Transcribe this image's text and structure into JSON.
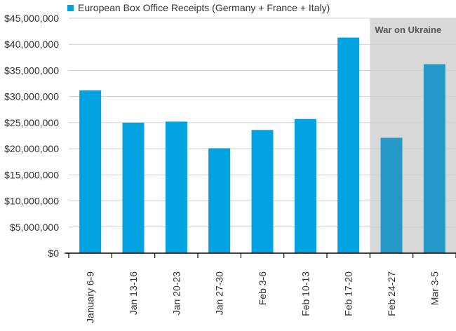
{
  "chart_data": {
    "type": "bar",
    "legend": "European Box Office Receipts (Germany + France + Italy)",
    "categories": [
      "January 6-9",
      "Jan 13-16",
      "Jan 20-23",
      "Jan 27-30",
      "Feb 3-6",
      "Feb 10-13",
      "Feb 17-20",
      "Feb 24-27",
      "Mar 3-5"
    ],
    "values": [
      31200000,
      25000000,
      25200000,
      20100000,
      23600000,
      25700000,
      41300000,
      22100000,
      36200000
    ],
    "yticks": [
      "$0",
      "$5,000,000",
      "$10,000,000",
      "$15,000,000",
      "$20,000,000",
      "$25,000,000",
      "$30,000,000",
      "$35,000,000",
      "$40,000,000",
      "$45,000,000"
    ],
    "ylim": [
      0,
      45000000
    ],
    "grid": true,
    "shaded_region": {
      "label": "War on Ukraine",
      "start_category": "Feb 24-27",
      "end_category": "Mar 3-5"
    },
    "colors": {
      "bar": "#00a2e1",
      "bar_shaded": "#2598c8",
      "shade": "#d9d9d9",
      "grid": "#d0d0d0",
      "axis": "#000000"
    }
  }
}
